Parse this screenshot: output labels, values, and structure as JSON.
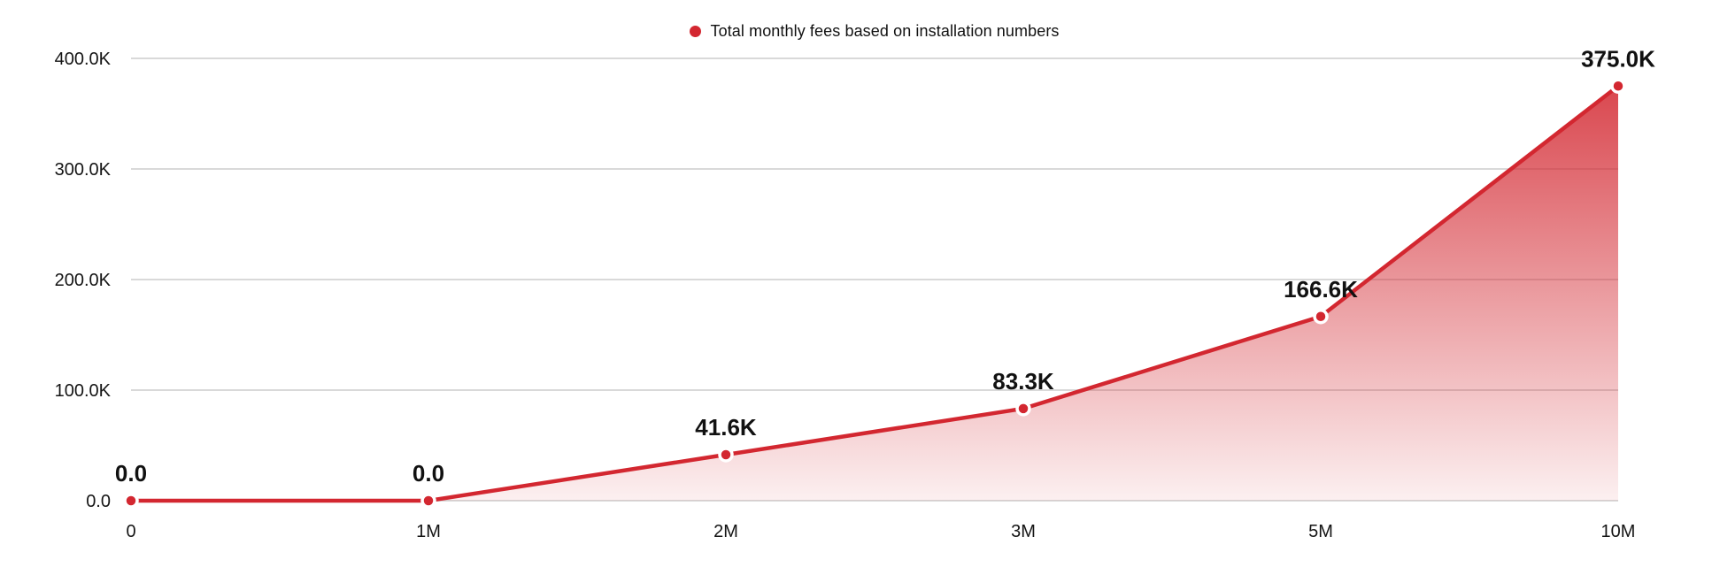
{
  "legend": {
    "label": "Total monthly fees based on installation numbers"
  },
  "chart_data": {
    "type": "area",
    "title": "Total monthly fees based on installation numbers",
    "categories": [
      "0",
      "1M",
      "2M",
      "3M",
      "5M",
      "10M"
    ],
    "series": [
      {
        "name": "Total monthly fees based on installation numbers",
        "values": [
          0,
          0,
          41600,
          83300,
          166600,
          375000
        ],
        "point_labels": [
          "0.0",
          "0.0",
          "41.6K",
          "83.3K",
          "166.6K",
          "375.0K"
        ]
      }
    ],
    "xlabel": "",
    "ylabel": "",
    "x_tick_labels": [
      "0",
      "1M",
      "2M",
      "3M",
      "5M",
      "10M"
    ],
    "y_ticks": [
      {
        "value": 0,
        "label": "0.0"
      },
      {
        "value": 100000,
        "label": "100.0K"
      },
      {
        "value": 200000,
        "label": "200.0K"
      },
      {
        "value": 300000,
        "label": "300.0K"
      },
      {
        "value": 400000,
        "label": "400.0K"
      }
    ],
    "ylim": [
      0,
      400000
    ],
    "grid": true,
    "legend_position": "top-center",
    "colors": {
      "line": "#d32730",
      "marker": "#d32730",
      "marker_ring": "#ffffff",
      "area_top": "rgba(211, 39, 48, 0.85)",
      "area_bottom": "rgba(211, 39, 48, 0.07)",
      "gridline": "#d9d9d9",
      "tick_text": "#141414",
      "label_text": "#111111"
    }
  }
}
